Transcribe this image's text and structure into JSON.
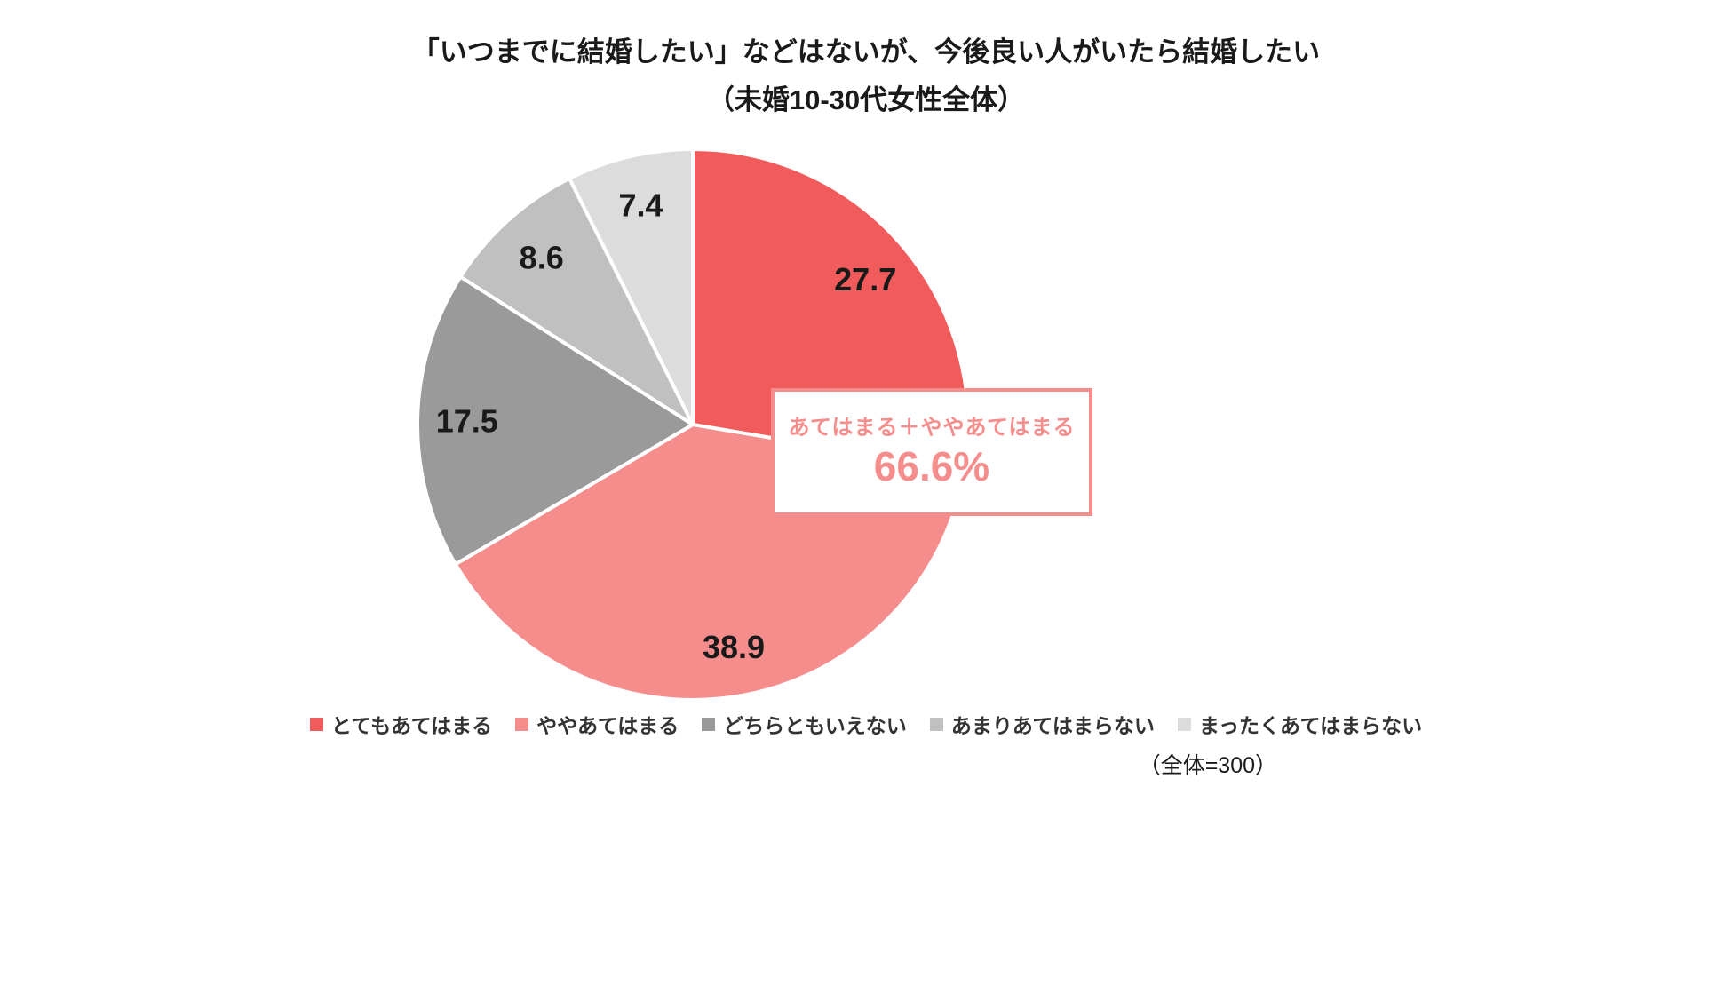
{
  "title": {
    "line1": "「いつまでに結婚したい」などはないが、今後良い人がいたら結婚したい",
    "line2": "（未婚10-30代女性全体）"
  },
  "chart_data": {
    "type": "pie",
    "title": "「いつまでに結婚したい」などはないが、今後良い人がいたら結婚したい（未婚10-30代女性全体）",
    "categories": [
      "とてもあてはまる",
      "ややあてはまる",
      "どちらともいえない",
      "あまりあてはまらない",
      "まったくあてはまらない"
    ],
    "values": [
      27.7,
      38.9,
      17.5,
      8.6,
      7.4
    ],
    "colors": [
      "#f25b5b",
      "#f58d8d",
      "#9a9a9a",
      "#c0c0c0",
      "#dcdcdc"
    ],
    "start_angle_deg": 0,
    "direction": "clockwise",
    "label_radius_fraction": 0.82,
    "slice_border_color": "#ffffff",
    "legend_position": "bottom",
    "annotation": {
      "label": "あてはまる＋ややあてはまる",
      "value": "66.6%",
      "accent_color": "#f58d8d"
    }
  },
  "footnote": "（全体=300）"
}
